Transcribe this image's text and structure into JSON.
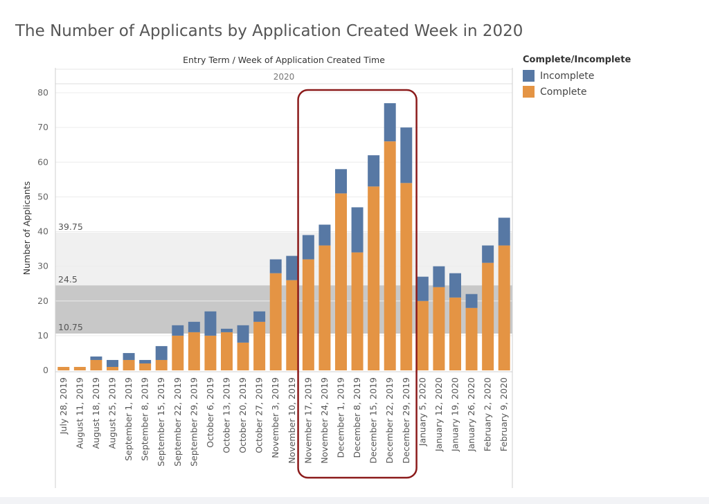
{
  "title": "The Number of Applicants by Application Created Week in 2020",
  "legend": {
    "title": "Complete/Incomplete",
    "items": [
      {
        "label": "Incomplete",
        "color": "#5778a4"
      },
      {
        "label": "Complete",
        "color": "#e49444"
      }
    ]
  },
  "chart_data": {
    "type": "bar",
    "stacked": true,
    "column_header": "Entry Term  /  Week of Application Created Time",
    "panel_label": "2020",
    "ylabel": "Number of Applicants",
    "ylim": [
      0,
      82
    ],
    "yticks": [
      0,
      10,
      20,
      30,
      40,
      50,
      60,
      70,
      80
    ],
    "categories": [
      "July 28, 2019",
      "August 11, 2019",
      "August 18, 2019",
      "August 25, 2019",
      "September 1, 2019",
      "September 8, 2019",
      "September 15, 2019",
      "September 22, 2019",
      "September 29, 2019",
      "October 6, 2019",
      "October 13, 2019",
      "October 20, 2019",
      "October 27, 2019",
      "November 3, 2019",
      "November 10, 2019",
      "November 17, 2019",
      "November 24, 2019",
      "December 1, 2019",
      "December 8, 2019",
      "December 15, 2019",
      "December 22, 2019",
      "December 29, 2019",
      "January 5, 2020",
      "January 12, 2020",
      "January 19, 2020",
      "January 26, 2020",
      "February 2, 2020",
      "February 9, 2020"
    ],
    "series": [
      {
        "name": "Complete",
        "color": "#e49444",
        "values": [
          1,
          1,
          3,
          1,
          3,
          2,
          3,
          10,
          11,
          10,
          11,
          8,
          14,
          28,
          26,
          32,
          36,
          51,
          34,
          53,
          66,
          54,
          20,
          24,
          21,
          18,
          31,
          36
        ]
      },
      {
        "name": "Incomplete",
        "color": "#5778a4",
        "values": [
          0,
          0,
          1,
          2,
          2,
          1,
          4,
          3,
          3,
          7,
          1,
          5,
          3,
          4,
          7,
          7,
          6,
          7,
          13,
          9,
          11,
          16,
          7,
          6,
          7,
          4,
          5,
          8
        ]
      }
    ],
    "reference_bands": [
      {
        "from": 24.5,
        "to": 39.75,
        "label": "39.75",
        "color": "#f0f0f0"
      },
      {
        "from": 10.75,
        "to": 24.5,
        "label": "24.5",
        "color": "#c8c8c8"
      }
    ],
    "reference_lines": [
      {
        "value": 10.75,
        "label": "10.75"
      }
    ],
    "highlight": {
      "from_index": 15,
      "to_index": 21,
      "color": "#8b1a1a"
    }
  }
}
